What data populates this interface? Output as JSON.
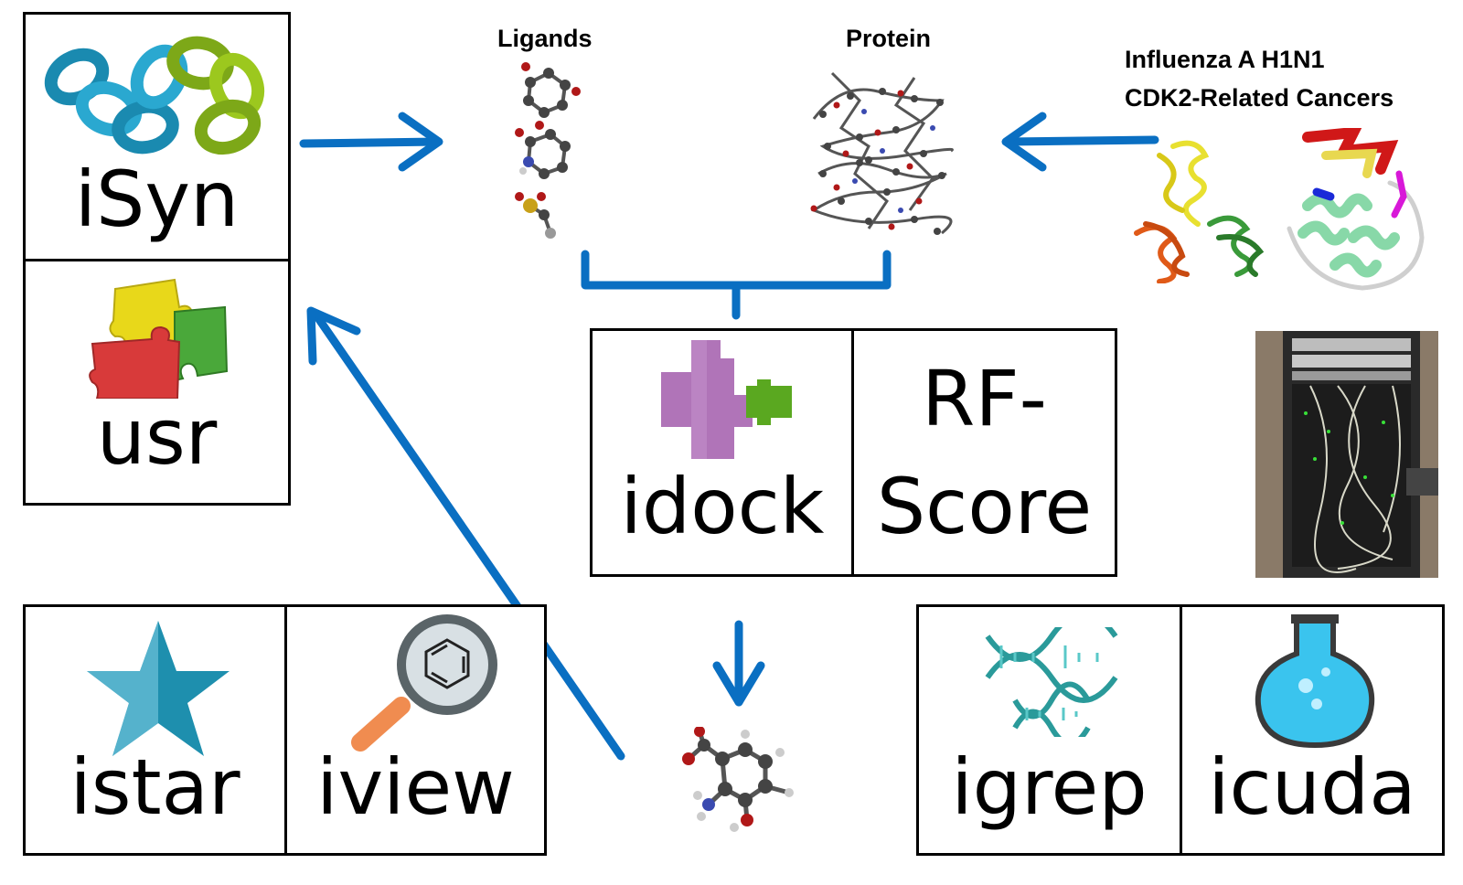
{
  "labels": {
    "ligands": "Ligands",
    "protein": "Protein",
    "disease_1": "Influenza A H1N1",
    "disease_2": "CDK2-Related Cancers"
  },
  "tools": {
    "isyn": "iSyn",
    "usr": "usr",
    "idock": "idock",
    "rfscore_1": "RF-",
    "rfscore_2": "Score",
    "istar": "istar",
    "iview": "iview",
    "igrep": "igrep",
    "icuda": "icuda"
  },
  "colors": {
    "arrow": "#0a6fc2",
    "chain_blue": "#2aa8d0",
    "chain_green": "#9cc81e",
    "puzzle_yellow": "#e8d81a",
    "puzzle_green": "#4aa83a",
    "puzzle_red": "#d83a3a",
    "idock_purple": "#b074b8",
    "idock_green": "#5aa820",
    "star_teal": "#1e8fae",
    "flask_blue": "#3ac4ee",
    "dna_teal": "#2a9a9a"
  },
  "icons": [
    "chain-icon",
    "puzzle-icon",
    "puzzle-pieces-icon",
    "star-icon",
    "magnifier-benzene-icon",
    "dna-icon",
    "flask-icon",
    "molecule-icon",
    "protein-structure-icon",
    "server-rack-photo"
  ]
}
